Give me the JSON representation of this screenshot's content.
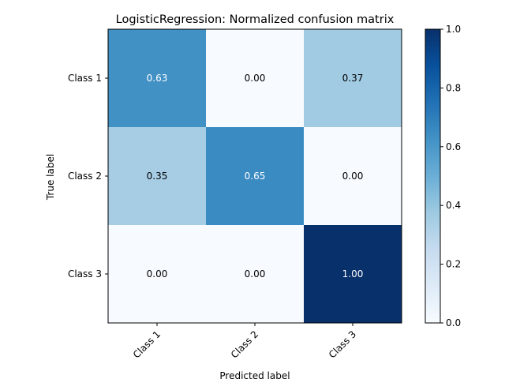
{
  "chart_data": {
    "type": "heatmap",
    "title": "LogisticRegression: Normalized confusion matrix",
    "xlabel": "Predicted label",
    "ylabel": "True label",
    "x_categories": [
      "Class 1",
      "Class 2",
      "Class 3"
    ],
    "y_categories": [
      "Class 1",
      "Class 2",
      "Class 3"
    ],
    "values": [
      [
        0.63,
        0.0,
        0.37
      ],
      [
        0.35,
        0.65,
        0.0
      ],
      [
        0.0,
        0.0,
        1.0
      ]
    ],
    "value_labels": [
      [
        "0.63",
        "0.00",
        "0.37"
      ],
      [
        "0.35",
        "0.65",
        "0.00"
      ],
      [
        "0.00",
        "0.00",
        "1.00"
      ]
    ],
    "colormap": "Blues",
    "colorbar": {
      "range": [
        0.0,
        1.0
      ],
      "ticks": [
        0.0,
        0.2,
        0.4,
        0.6,
        0.8,
        1.0
      ],
      "tick_labels": [
        "0.0",
        "0.2",
        "0.4",
        "0.6",
        "0.8",
        "1.0"
      ]
    },
    "grid": false,
    "x_tick_rotation_deg": 45
  }
}
